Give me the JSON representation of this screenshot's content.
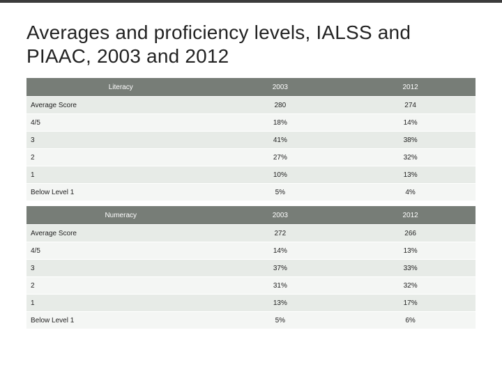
{
  "slide": {
    "title": "Averages and proficiency levels, IALSS and PIAAC, 2003 and 2012"
  },
  "colors": {
    "header_bg": "#777d77",
    "header_text": "#ffffff",
    "row_odd_bg": "#e7ebe7",
    "row_even_bg": "#f4f6f4",
    "text": "#222222",
    "topbar": "#3b3b3b",
    "page_bg": "#ffffff"
  },
  "tables": [
    {
      "header": {
        "label": "Literacy",
        "col1": "2003",
        "col2": "2012"
      },
      "rows": [
        {
          "label": "Average Score",
          "col1": "280",
          "col2": "274"
        },
        {
          "label": "4/5",
          "col1": "18%",
          "col2": "14%"
        },
        {
          "label": "3",
          "col1": "41%",
          "col2": "38%"
        },
        {
          "label": "2",
          "col1": "27%",
          "col2": "32%"
        },
        {
          "label": "1",
          "col1": "10%",
          "col2": "13%"
        },
        {
          "label": "Below Level 1",
          "col1": "5%",
          "col2": "4%"
        }
      ]
    },
    {
      "header": {
        "label": "Numeracy",
        "col1": "2003",
        "col2": "2012"
      },
      "rows": [
        {
          "label": "Average Score",
          "col1": "272",
          "col2": "266"
        },
        {
          "label": "4/5",
          "col1": "14%",
          "col2": "13%"
        },
        {
          "label": "3",
          "col1": "37%",
          "col2": "33%"
        },
        {
          "label": "2",
          "col1": "31%",
          "col2": "32%"
        },
        {
          "label": "1",
          "col1": "13%",
          "col2": "17%"
        },
        {
          "label": "Below Level 1",
          "col1": "5%",
          "col2": "6%"
        }
      ]
    }
  ]
}
